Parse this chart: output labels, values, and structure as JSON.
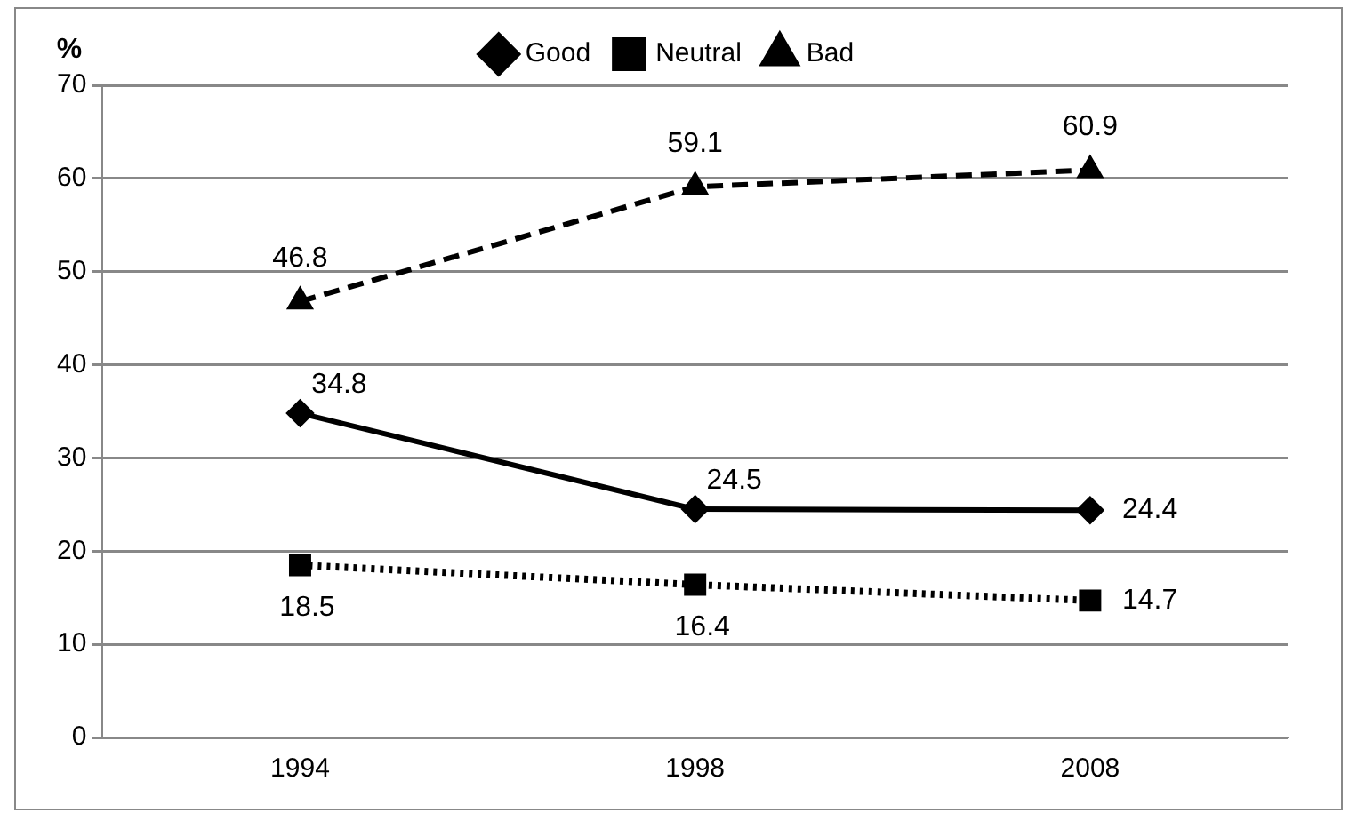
{
  "chart_data": {
    "type": "line",
    "ylabel": "%",
    "categories": [
      "1994",
      "1998",
      "2008"
    ],
    "series": [
      {
        "name": "Good",
        "color": "#000000",
        "values": [
          34.8,
          24.5,
          24.4
        ],
        "marker": "diamond",
        "line_style": "solid"
      },
      {
        "name": "Neutral",
        "color": "#000000",
        "values": [
          18.5,
          16.4,
          14.7
        ],
        "marker": "square",
        "line_style": "dotted"
      },
      {
        "name": "Bad",
        "color": "#000000",
        "values": [
          46.8,
          59.1,
          60.9
        ],
        "marker": "triangle",
        "line_style": "dashed"
      }
    ],
    "ylim": [
      0,
      70
    ],
    "yticks": [
      0,
      10,
      20,
      30,
      40,
      50,
      60,
      70
    ],
    "grid": "y",
    "legend": "top",
    "data_labels": true
  }
}
